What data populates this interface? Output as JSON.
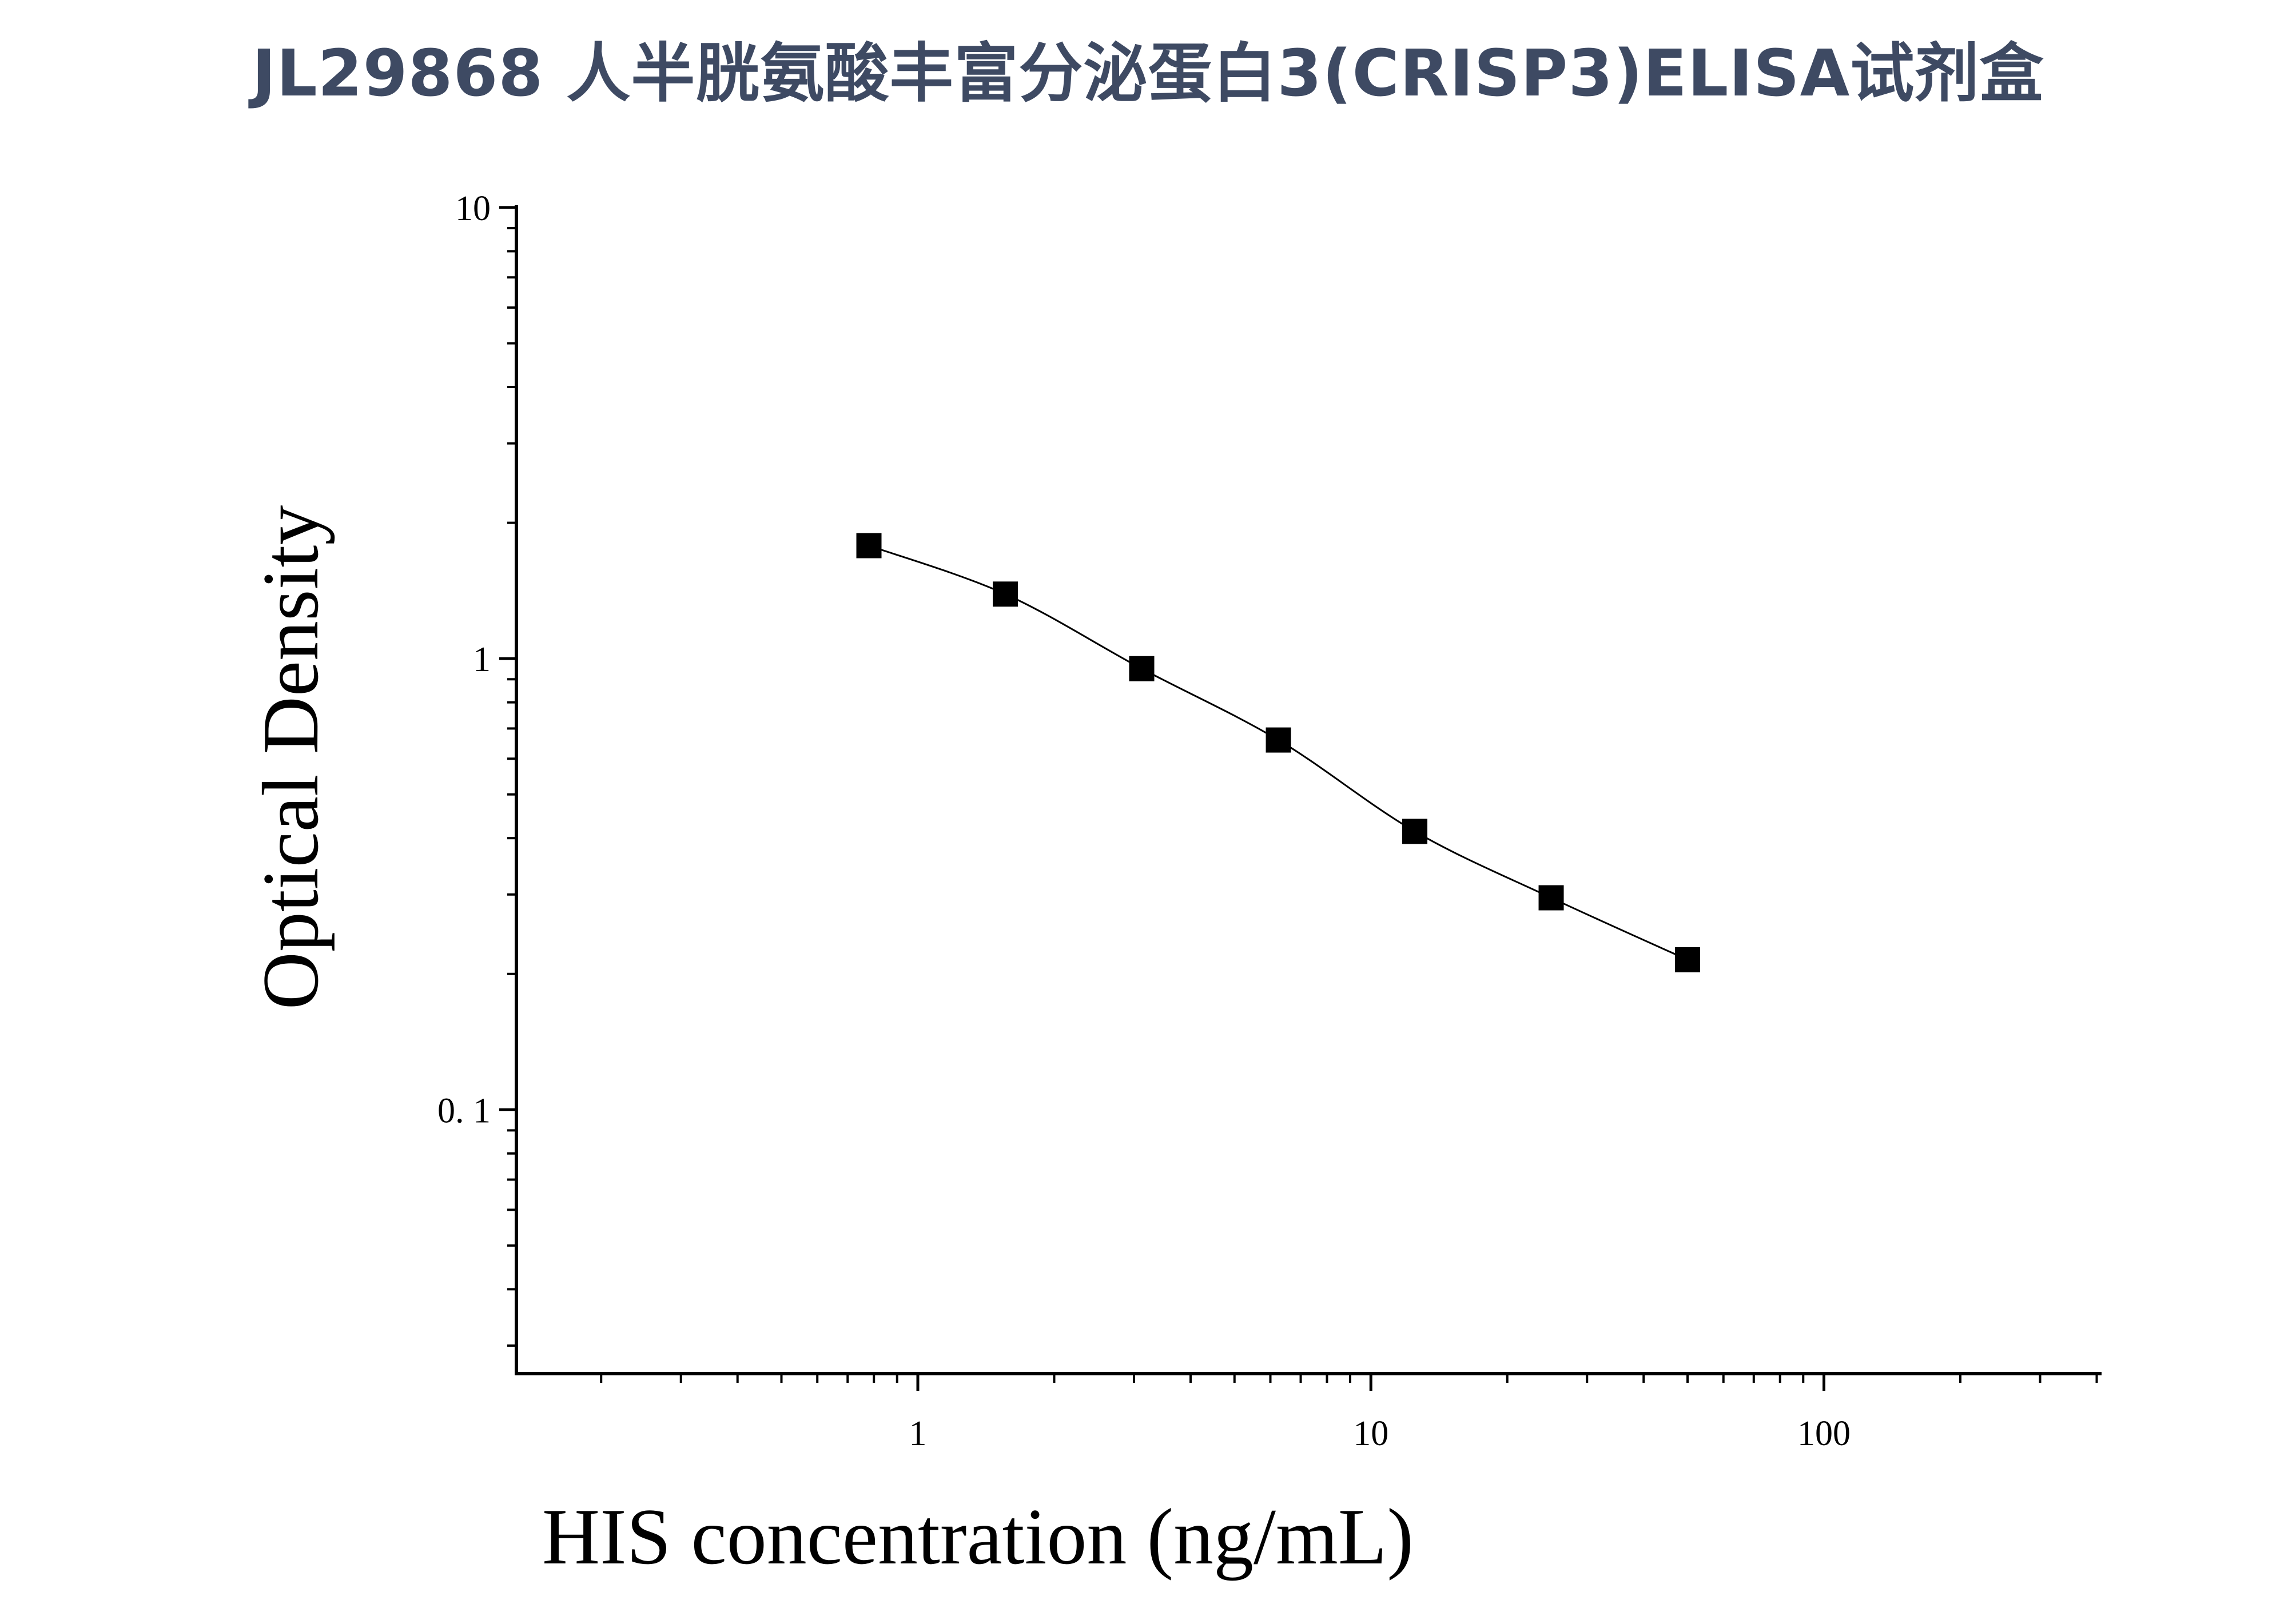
{
  "chart_data": {
    "type": "scatter",
    "title": "JL29868 人半胱氨酸丰富分泌蛋白3(CRISP3)ELISA试剂盒",
    "xlabel": "HIS concentration (ng/mL)",
    "ylabel": "Optical Density",
    "xscale": "log",
    "yscale": "log",
    "xlim": [
      0.13,
      410
    ],
    "ylim": [
      0.026,
      10
    ],
    "x_ticks": [
      {
        "value": 1,
        "label": "1"
      },
      {
        "value": 10,
        "label": "10"
      },
      {
        "value": 100,
        "label": "100"
      }
    ],
    "y_ticks": [
      {
        "value": 10,
        "label": "10"
      },
      {
        "value": 1,
        "label": "1"
      },
      {
        "value": 0.1,
        "label": "0. 1"
      }
    ],
    "grid": false,
    "legend": "none",
    "series": [
      {
        "marker": "square",
        "color": "#000000",
        "x": [
          0.78,
          1.56,
          3.12,
          6.25,
          12.5,
          25,
          50
        ],
        "y": [
          1.78,
          1.39,
          0.95,
          0.66,
          0.414,
          0.295,
          0.215
        ]
      }
    ],
    "fit_curve": {
      "kind": "four-parameter logistic",
      "color": "#000000"
    }
  }
}
